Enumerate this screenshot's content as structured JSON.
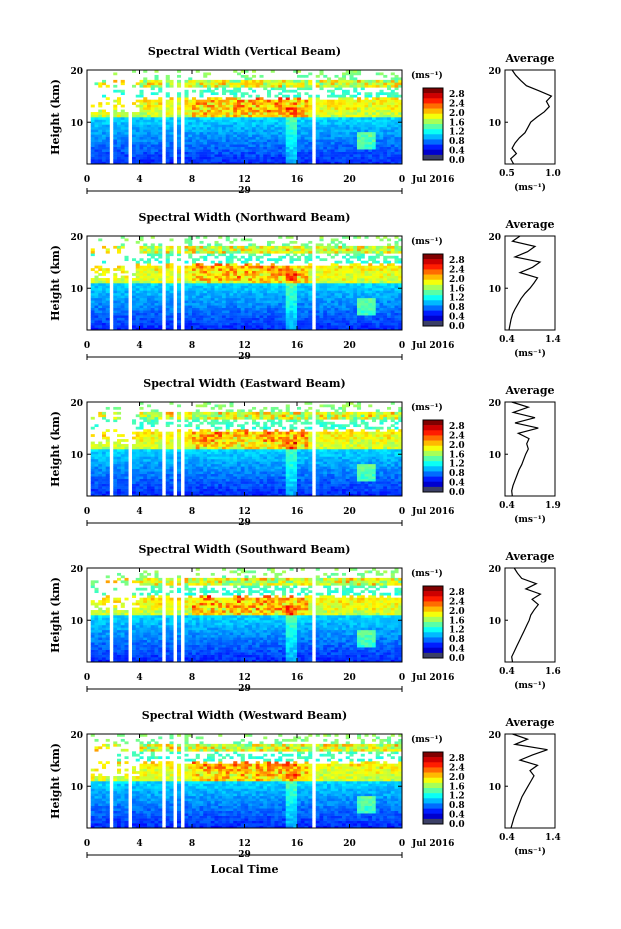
{
  "chart_data": [
    {
      "type": "heatmap",
      "title": "Spectral Width (Vertical Beam)",
      "ylabel": "Height (km)",
      "xticks": [
        "0",
        "4",
        "8",
        "12",
        "16",
        "20",
        "0"
      ],
      "yticks": [
        "20",
        "10"
      ],
      "ylim": [
        2,
        20
      ],
      "date_day": "29",
      "date_month": "Jul 2016",
      "colorbar": {
        "unit": "(ms⁻¹)",
        "ticks": [
          "2.8",
          "2.4",
          "2.0",
          "1.6",
          "1.2",
          "0.8",
          "0.4",
          "0.0"
        ],
        "range": [
          0.0,
          2.8
        ]
      },
      "average": {
        "title": "Average",
        "xticks": [
          "0.5",
          "1.0"
        ],
        "xlim": [
          0.5,
          1.2
        ],
        "yticks": [
          "20",
          "10"
        ],
        "xlabel": "(ms⁻¹)",
        "profile": [
          [
            0.62,
            2
          ],
          [
            0.58,
            3
          ],
          [
            0.66,
            4
          ],
          [
            0.6,
            5
          ],
          [
            0.64,
            6
          ],
          [
            0.7,
            7
          ],
          [
            0.78,
            8
          ],
          [
            0.82,
            9
          ],
          [
            0.86,
            10
          ],
          [
            0.95,
            11
          ],
          [
            1.05,
            12
          ],
          [
            1.12,
            13
          ],
          [
            1.08,
            14
          ],
          [
            1.15,
            15
          ],
          [
            0.98,
            16
          ],
          [
            0.8,
            17
          ],
          [
            0.72,
            18
          ],
          [
            0.65,
            19
          ],
          [
            0.6,
            20
          ]
        ]
      }
    },
    {
      "type": "heatmap",
      "title": "Spectral Width (Northward Beam)",
      "ylabel": "Height (km)",
      "xticks": [
        "0",
        "4",
        "8",
        "12",
        "16",
        "20",
        "0"
      ],
      "yticks": [
        "20",
        "10"
      ],
      "ylim": [
        2,
        20
      ],
      "date_day": "29",
      "date_month": "Jul 2016",
      "colorbar": {
        "unit": "(ms⁻¹)",
        "ticks": [
          "2.8",
          "2.4",
          "2.0",
          "1.6",
          "1.2",
          "0.8",
          "0.4",
          "0.0"
        ],
        "range": [
          0.0,
          2.8
        ]
      },
      "average": {
        "title": "Average",
        "xticks": [
          "0.4",
          "1.4"
        ],
        "xlim": [
          0.4,
          1.4
        ],
        "yticks": [
          "20",
          "10"
        ],
        "xlabel": "(ms⁻¹)",
        "profile": [
          [
            0.48,
            2
          ],
          [
            0.5,
            3
          ],
          [
            0.52,
            4
          ],
          [
            0.55,
            5
          ],
          [
            0.6,
            6
          ],
          [
            0.66,
            7
          ],
          [
            0.72,
            8
          ],
          [
            0.8,
            9
          ],
          [
            0.9,
            10
          ],
          [
            0.98,
            11
          ],
          [
            1.05,
            12
          ],
          [
            0.7,
            13
          ],
          [
            0.95,
            14
          ],
          [
            1.1,
            15
          ],
          [
            0.6,
            16
          ],
          [
            0.85,
            17
          ],
          [
            1.0,
            18
          ],
          [
            0.55,
            19
          ],
          [
            0.7,
            20
          ]
        ]
      }
    },
    {
      "type": "heatmap",
      "title": "Spectral Width (Eastward Beam)",
      "ylabel": "Height (km)",
      "xticks": [
        "0",
        "4",
        "8",
        "12",
        "16",
        "20",
        "0"
      ],
      "yticks": [
        "20",
        "10"
      ],
      "ylim": [
        2,
        20
      ],
      "date_day": "29",
      "date_month": "Jul 2016",
      "colorbar": {
        "unit": "(ms⁻¹)",
        "ticks": [
          "2.8",
          "2.4",
          "2.0",
          "1.6",
          "1.2",
          "0.8",
          "0.4",
          "0.0"
        ],
        "range": [
          0.0,
          2.8
        ]
      },
      "average": {
        "title": "Average",
        "xticks": [
          "0.4",
          "1.9"
        ],
        "xlim": [
          0.4,
          1.9
        ],
        "yticks": [
          "20",
          "10"
        ],
        "xlabel": "(ms⁻¹)",
        "profile": [
          [
            0.62,
            2
          ],
          [
            0.6,
            3
          ],
          [
            0.64,
            4
          ],
          [
            0.7,
            5
          ],
          [
            0.76,
            6
          ],
          [
            0.82,
            7
          ],
          [
            0.9,
            8
          ],
          [
            0.96,
            9
          ],
          [
            1.02,
            10
          ],
          [
            1.1,
            11
          ],
          [
            1.05,
            12
          ],
          [
            1.12,
            13
          ],
          [
            0.8,
            14
          ],
          [
            1.4,
            15
          ],
          [
            0.7,
            16
          ],
          [
            1.3,
            17
          ],
          [
            0.65,
            18
          ],
          [
            1.1,
            19
          ],
          [
            0.6,
            20
          ]
        ]
      }
    },
    {
      "type": "heatmap",
      "title": "Spectral Width (Southward Beam)",
      "ylabel": "Height (km)",
      "xticks": [
        "0",
        "4",
        "8",
        "12",
        "16",
        "20",
        "0"
      ],
      "yticks": [
        "20",
        "10"
      ],
      "ylim": [
        2,
        20
      ],
      "date_day": "29",
      "date_month": "Jul 2016",
      "colorbar": {
        "unit": "(ms⁻¹)",
        "ticks": [
          "2.8",
          "2.4",
          "2.0",
          "1.6",
          "1.2",
          "0.8",
          "0.4",
          "0.0"
        ],
        "range": [
          0.0,
          2.8
        ]
      },
      "average": {
        "title": "Average",
        "xticks": [
          "0.4",
          "1.6"
        ],
        "xlim": [
          0.4,
          1.6
        ],
        "yticks": [
          "20",
          "10"
        ],
        "xlabel": "(ms⁻¹)",
        "profile": [
          [
            0.58,
            2
          ],
          [
            0.56,
            3
          ],
          [
            0.62,
            4
          ],
          [
            0.68,
            5
          ],
          [
            0.74,
            6
          ],
          [
            0.8,
            7
          ],
          [
            0.86,
            8
          ],
          [
            0.92,
            9
          ],
          [
            0.98,
            10
          ],
          [
            1.02,
            11
          ],
          [
            1.1,
            12
          ],
          [
            1.2,
            13
          ],
          [
            1.05,
            14
          ],
          [
            1.25,
            15
          ],
          [
            0.9,
            16
          ],
          [
            1.15,
            17
          ],
          [
            0.8,
            18
          ],
          [
            0.7,
            19
          ],
          [
            0.62,
            20
          ]
        ]
      }
    },
    {
      "type": "heatmap",
      "title": "Spectral Width (Westward Beam)",
      "ylabel": "Height (km)",
      "xlabel": "Local Time",
      "xticks": [
        "0",
        "4",
        "8",
        "12",
        "16",
        "20",
        "0"
      ],
      "yticks": [
        "20",
        "10"
      ],
      "ylim": [
        2,
        20
      ],
      "date_day": "29",
      "date_month": "Jul 2016",
      "colorbar": {
        "unit": "(ms⁻¹)",
        "ticks": [
          "2.8",
          "2.4",
          "2.0",
          "1.6",
          "1.2",
          "0.8",
          "0.4",
          "0.0"
        ],
        "range": [
          0.0,
          2.8
        ]
      },
      "average": {
        "title": "Average",
        "xticks": [
          "0.4",
          "1.4"
        ],
        "xlim": [
          0.4,
          1.4
        ],
        "yticks": [
          "20",
          "10"
        ],
        "xlabel": "(ms⁻¹)",
        "profile": [
          [
            0.52,
            2
          ],
          [
            0.55,
            3
          ],
          [
            0.58,
            4
          ],
          [
            0.62,
            5
          ],
          [
            0.66,
            6
          ],
          [
            0.7,
            7
          ],
          [
            0.74,
            8
          ],
          [
            0.8,
            9
          ],
          [
            0.86,
            10
          ],
          [
            0.92,
            11
          ],
          [
            0.98,
            12
          ],
          [
            0.9,
            13
          ],
          [
            1.05,
            14
          ],
          [
            0.7,
            15
          ],
          [
            0.95,
            16
          ],
          [
            1.25,
            17
          ],
          [
            0.6,
            18
          ],
          [
            0.85,
            19
          ],
          [
            0.55,
            20
          ]
        ]
      }
    }
  ]
}
